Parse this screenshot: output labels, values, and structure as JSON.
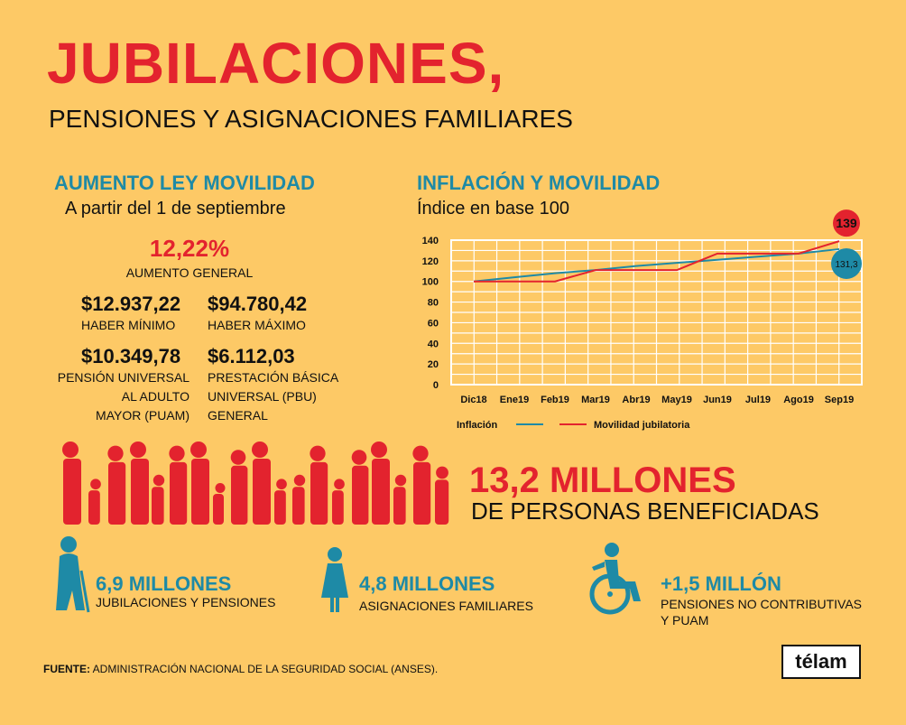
{
  "header": {
    "title": "JUBILACIONES,",
    "subtitle": "PENSIONES Y ASIGNACIONES FAMILIARES"
  },
  "aumento": {
    "heading": "AUMENTO LEY MOVILIDAD",
    "date_line": "A partir del 1 de septiembre",
    "general_pct": "12,22%",
    "general_label": "AUMENTO GENERAL",
    "items": [
      {
        "value": "$12.937,22",
        "label_lines": [
          "HABER MÍNIMO"
        ]
      },
      {
        "value": "$94.780,42",
        "label_lines": [
          "HABER MÁXIMO"
        ]
      },
      {
        "value": "$10.349,78",
        "label_lines": [
          "PENSIÓN UNIVERSAL",
          "AL ADULTO",
          "MAYOR (PUAM)"
        ]
      },
      {
        "value": "$6.112,03",
        "label_lines": [
          "PRESTACIÓN BÁSICA",
          "UNIVERSAL (PBU)",
          "GENERAL"
        ]
      }
    ]
  },
  "chart_section": {
    "heading": "INFLACIÓN Y MOVILIDAD",
    "subheading": "Índice en base 100",
    "colors": {
      "inflacion": "#1e8aa6",
      "movilidad": "#e3232e",
      "grid": "#ffffff",
      "plot_bg": "#fdc966"
    }
  },
  "chart_data": {
    "type": "line",
    "title": "INFLACIÓN Y MOVILIDAD",
    "subtitle": "Índice en base 100",
    "x": [
      "Dic18",
      "Ene19",
      "Feb19",
      "Mar19",
      "Abr19",
      "May19",
      "Jun19",
      "Jul19",
      "Ago19",
      "Sep19"
    ],
    "ylim": [
      0,
      140
    ],
    "yticks": [
      0,
      20,
      40,
      60,
      80,
      100,
      120,
      140
    ],
    "grid": true,
    "legend_position": "bottom",
    "series": [
      {
        "name": "Inflación",
        "color": "#1e8aa6",
        "values": [
          100,
          104,
          108,
          111,
          115,
          118,
          121,
          124,
          127,
          131.3
        ]
      },
      {
        "name": "Movilidad jubilatoria",
        "color": "#e3232e",
        "values": [
          100,
          100,
          100,
          111,
          111,
          111,
          127,
          127,
          127,
          139
        ]
      }
    ],
    "end_labels": [
      {
        "series": "Movilidad jubilatoria",
        "text": "139"
      },
      {
        "series": "Inflación",
        "text": "131,3"
      }
    ]
  },
  "people": {
    "headline": "13,2 MILLONES",
    "subline": "DE PERSONAS BENEFICIADAS",
    "color": "#e3232e"
  },
  "stats": [
    {
      "icon": "elderly-person-icon",
      "value": "6,9 MILLONES",
      "label_lines": [
        "JUBILACIONES Y PENSIONES"
      ]
    },
    {
      "icon": "child-icon",
      "value": "4,8 MILLONES",
      "label_lines": [
        "ASIGNACIONES FAMILIARES"
      ]
    },
    {
      "icon": "wheelchair-icon",
      "value": "+1,5 MILLÓN",
      "label_lines": [
        "PENSIONES NO CONTRIBUTIVAS",
        "Y PUAM"
      ]
    }
  ],
  "footer": {
    "source_label": "FUENTE:",
    "source_text": " ADMINISTRACIÓN NACIONAL DE LA SEGURIDAD SOCIAL (ANSES).",
    "logo": "télam"
  }
}
